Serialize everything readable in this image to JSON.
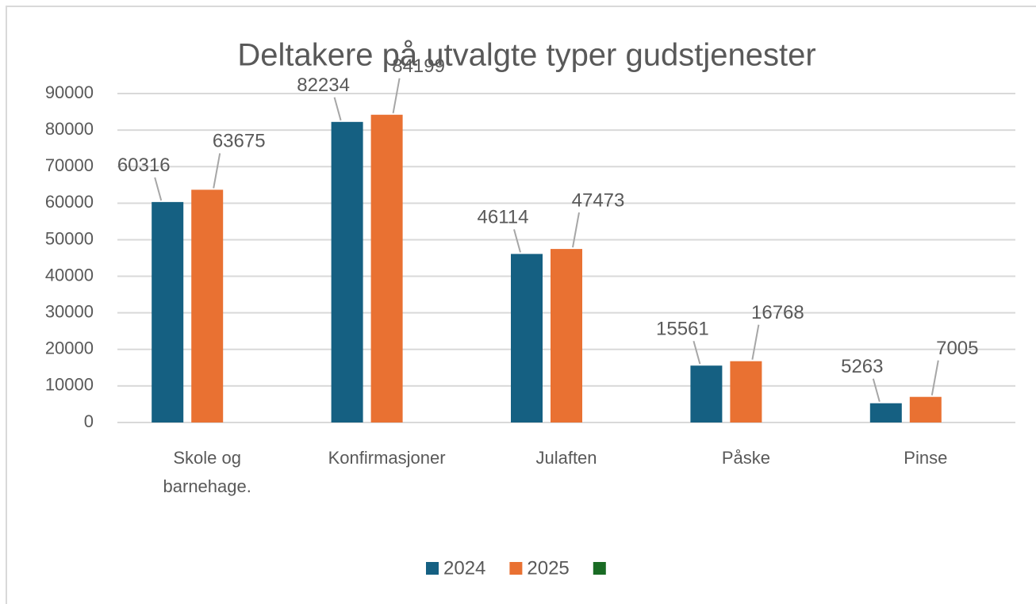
{
  "chart_data": {
    "type": "bar",
    "title": "Deltakere på utvalgte typer gudstjenester",
    "categories": [
      "Skole og barnehage.",
      "Konfirmasjoner",
      "Julaften",
      "Påske",
      "Pinse"
    ],
    "series": [
      {
        "name": "2024",
        "color": "#156082",
        "values": [
          60316,
          82234,
          46114,
          15561,
          5263
        ]
      },
      {
        "name": "2025",
        "color": "#e97132",
        "values": [
          63675,
          84199,
          47473,
          16768,
          7005
        ]
      },
      {
        "color": "#196b24",
        "values": [
          null,
          null,
          null,
          null,
          null
        ]
      }
    ],
    "ylim": [
      0,
      90000
    ],
    "yticks": [
      0,
      10000,
      20000,
      30000,
      40000,
      50000,
      60000,
      70000,
      80000,
      90000
    ],
    "grid": true,
    "legend": "bottom"
  }
}
